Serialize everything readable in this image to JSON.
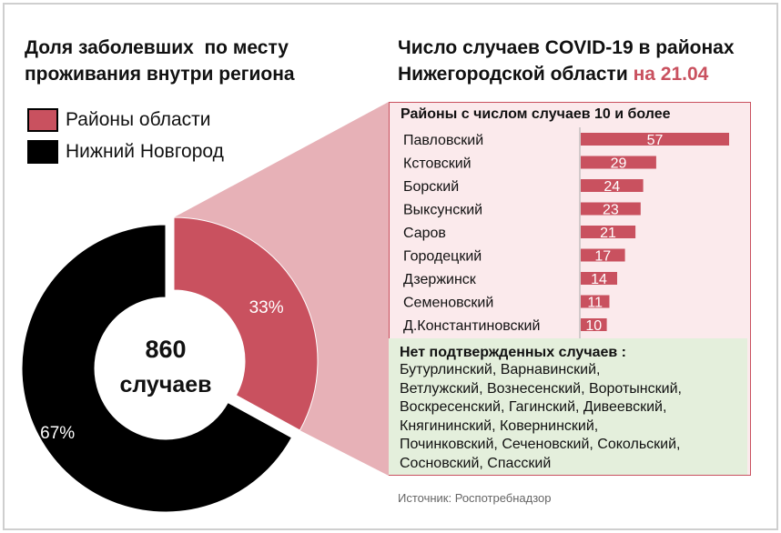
{
  "left_title": {
    "line1": "Доля заболевших  по месту",
    "line2": "проживания внутри региона"
  },
  "legend": [
    {
      "label": "Районы области",
      "color": "#c9515f"
    },
    {
      "label": "Нижний Новгород",
      "color": "#000000"
    }
  ],
  "donut": {
    "center_number": "860",
    "center_text": "случаев"
  },
  "right_title": {
    "line1": "Число случаев COVID-19 в районах",
    "line2": "Нижегородской области",
    "date": "на 21.04"
  },
  "bars_subtitle": "Районы с числом случаев 10 и более",
  "no_cases": {
    "title": "Нет подтвержденных случаев :",
    "lines": [
      "Бутурлинский, Варнавинский,",
      "Ветлужский, Вознесенский, Воротынский,",
      "Воскресенский, Гагинский, Дивеевский,",
      "Княгининский, Ковернинский,",
      "Починковский, Сеченовский, Сокольский,",
      "Сосновский, Спасский"
    ]
  },
  "source": "Источник: Роспотребнадзор",
  "colors": {
    "accent": "#c9515f",
    "dark": "#000000",
    "panel_bg": "#fbeaec",
    "green_bg": "#e4efdc"
  },
  "chart_data": [
    {
      "type": "pie",
      "categories": [
        "Районы области",
        "Нижний Новгород"
      ],
      "values": [
        33,
        67
      ],
      "labels": [
        "33%",
        "67%"
      ],
      "colors": [
        "#c9515f",
        "#000000"
      ]
    },
    {
      "type": "bar",
      "orientation": "horizontal",
      "categories": [
        "Павловский",
        "Кстовский",
        "Борский",
        "Выксунский",
        "Саров",
        "Городецкий",
        "Дзержинск",
        "Семеновский",
        "Д.Константиновский"
      ],
      "values": [
        57,
        29,
        24,
        23,
        21,
        17,
        14,
        11,
        10
      ],
      "color": "#c9515f"
    }
  ]
}
